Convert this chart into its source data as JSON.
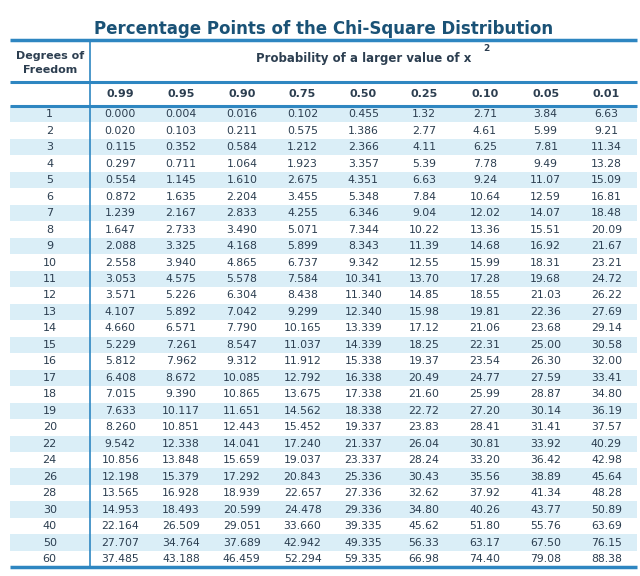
{
  "title": "Percentage Points of the Chi-Square Distribution",
  "col_headers": [
    "0.99",
    "0.95",
    "0.90",
    "0.75",
    "0.50",
    "0.25",
    "0.10",
    "0.05",
    "0.01"
  ],
  "row_labels": [
    "1",
    "2",
    "3",
    "4",
    "5",
    "6",
    "7",
    "8",
    "9",
    "10",
    "11",
    "12",
    "13",
    "14",
    "15",
    "16",
    "17",
    "18",
    "19",
    "20",
    "22",
    "24",
    "26",
    "28",
    "30",
    "40",
    "50",
    "60"
  ],
  "table_data": [
    [
      "0.000",
      "0.004",
      "0.016",
      "0.102",
      "0.455",
      "1.32",
      "2.71",
      "3.84",
      "6.63"
    ],
    [
      "0.020",
      "0.103",
      "0.211",
      "0.575",
      "1.386",
      "2.77",
      "4.61",
      "5.99",
      "9.21"
    ],
    [
      "0.115",
      "0.352",
      "0.584",
      "1.212",
      "2.366",
      "4.11",
      "6.25",
      "7.81",
      "11.34"
    ],
    [
      "0.297",
      "0.711",
      "1.064",
      "1.923",
      "3.357",
      "5.39",
      "7.78",
      "9.49",
      "13.28"
    ],
    [
      "0.554",
      "1.145",
      "1.610",
      "2.675",
      "4.351",
      "6.63",
      "9.24",
      "11.07",
      "15.09"
    ],
    [
      "0.872",
      "1.635",
      "2.204",
      "3.455",
      "5.348",
      "7.84",
      "10.64",
      "12.59",
      "16.81"
    ],
    [
      "1.239",
      "2.167",
      "2.833",
      "4.255",
      "6.346",
      "9.04",
      "12.02",
      "14.07",
      "18.48"
    ],
    [
      "1.647",
      "2.733",
      "3.490",
      "5.071",
      "7.344",
      "10.22",
      "13.36",
      "15.51",
      "20.09"
    ],
    [
      "2.088",
      "3.325",
      "4.168",
      "5.899",
      "8.343",
      "11.39",
      "14.68",
      "16.92",
      "21.67"
    ],
    [
      "2.558",
      "3.940",
      "4.865",
      "6.737",
      "9.342",
      "12.55",
      "15.99",
      "18.31",
      "23.21"
    ],
    [
      "3.053",
      "4.575",
      "5.578",
      "7.584",
      "10.341",
      "13.70",
      "17.28",
      "19.68",
      "24.72"
    ],
    [
      "3.571",
      "5.226",
      "6.304",
      "8.438",
      "11.340",
      "14.85",
      "18.55",
      "21.03",
      "26.22"
    ],
    [
      "4.107",
      "5.892",
      "7.042",
      "9.299",
      "12.340",
      "15.98",
      "19.81",
      "22.36",
      "27.69"
    ],
    [
      "4.660",
      "6.571",
      "7.790",
      "10.165",
      "13.339",
      "17.12",
      "21.06",
      "23.68",
      "29.14"
    ],
    [
      "5.229",
      "7.261",
      "8.547",
      "11.037",
      "14.339",
      "18.25",
      "22.31",
      "25.00",
      "30.58"
    ],
    [
      "5.812",
      "7.962",
      "9.312",
      "11.912",
      "15.338",
      "19.37",
      "23.54",
      "26.30",
      "32.00"
    ],
    [
      "6.408",
      "8.672",
      "10.085",
      "12.792",
      "16.338",
      "20.49",
      "24.77",
      "27.59",
      "33.41"
    ],
    [
      "7.015",
      "9.390",
      "10.865",
      "13.675",
      "17.338",
      "21.60",
      "25.99",
      "28.87",
      "34.80"
    ],
    [
      "7.633",
      "10.117",
      "11.651",
      "14.562",
      "18.338",
      "22.72",
      "27.20",
      "30.14",
      "36.19"
    ],
    [
      "8.260",
      "10.851",
      "12.443",
      "15.452",
      "19.337",
      "23.83",
      "28.41",
      "31.41",
      "37.57"
    ],
    [
      "9.542",
      "12.338",
      "14.041",
      "17.240",
      "21.337",
      "26.04",
      "30.81",
      "33.92",
      "40.29"
    ],
    [
      "10.856",
      "13.848",
      "15.659",
      "19.037",
      "23.337",
      "28.24",
      "33.20",
      "36.42",
      "42.98"
    ],
    [
      "12.198",
      "15.379",
      "17.292",
      "20.843",
      "25.336",
      "30.43",
      "35.56",
      "38.89",
      "45.64"
    ],
    [
      "13.565",
      "16.928",
      "18.939",
      "22.657",
      "27.336",
      "32.62",
      "37.92",
      "41.34",
      "48.28"
    ],
    [
      "14.953",
      "18.493",
      "20.599",
      "24.478",
      "29.336",
      "34.80",
      "40.26",
      "43.77",
      "50.89"
    ],
    [
      "22.164",
      "26.509",
      "29.051",
      "33.660",
      "39.335",
      "45.62",
      "51.80",
      "55.76",
      "63.69"
    ],
    [
      "27.707",
      "34.764",
      "37.689",
      "42.942",
      "49.335",
      "56.33",
      "63.17",
      "67.50",
      "76.15"
    ],
    [
      "37.485",
      "43.188",
      "46.459",
      "52.294",
      "59.335",
      "66.98",
      "74.40",
      "79.08",
      "88.38"
    ]
  ],
  "title_color": "#1a5276",
  "border_color": "#2e86c1",
  "text_color": "#2c3e50",
  "odd_row_color": "#daeef7",
  "even_row_color": "#ffffff",
  "background_color": "#ffffff",
  "figsize": [
    6.4,
    5.76
  ],
  "dpi": 100
}
